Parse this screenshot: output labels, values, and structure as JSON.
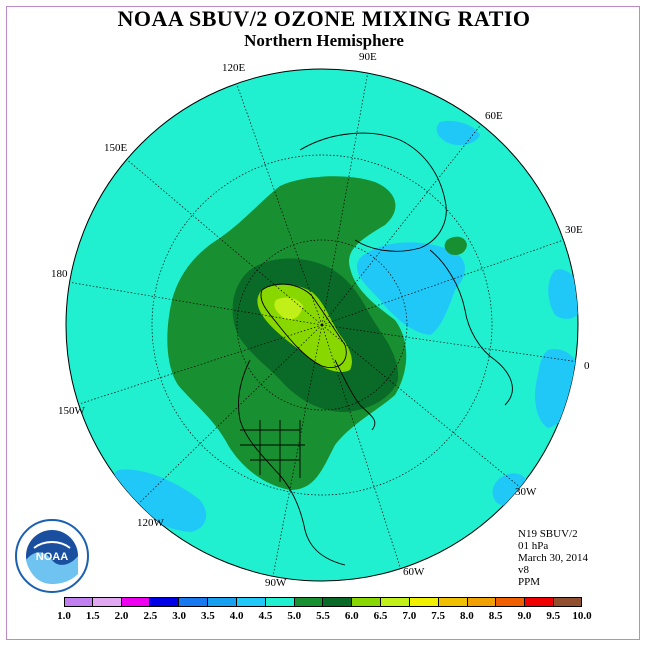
{
  "title": "NOAA SBUV/2 OZONE MIXING RATIO",
  "subtitle": "Northern Hemisphere",
  "lon_labels": [
    "90E",
    "60E",
    "30E",
    "0",
    "30W",
    "60W",
    "90W",
    "120W",
    "150W",
    "180",
    "150E",
    "120E"
  ],
  "info": {
    "satellite": "N19 SBUV/2",
    "level": "01 hPa",
    "date": "March 30, 2014",
    "version": "v8",
    "units": "PPM"
  },
  "colorbar": {
    "ticks": [
      "1.0",
      "1.5",
      "2.0",
      "2.5",
      "3.0",
      "3.5",
      "4.0",
      "4.5",
      "5.0",
      "5.5",
      "6.0",
      "6.5",
      "7.0",
      "7.5",
      "8.0",
      "8.5",
      "9.0",
      "9.5",
      "10.0"
    ],
    "colors": [
      "#c080f0",
      "#e0a8f0",
      "#f000f0",
      "#0000e8",
      "#1878f0",
      "#18a0f0",
      "#20c8f8",
      "#20f0d0",
      "#188f30",
      "#0a6a28",
      "#88d800",
      "#c0f018",
      "#f0f000",
      "#f0c000",
      "#f0a000",
      "#f06000",
      "#f00000",
      "#905030"
    ]
  },
  "map_colors": {
    "background": "#20f0d0",
    "low": "#20c8f8",
    "mid": "#188f30",
    "dark": "#0a6a28",
    "high": "#88d800",
    "peak": "#c0f018"
  },
  "logo_text": "NOAA"
}
